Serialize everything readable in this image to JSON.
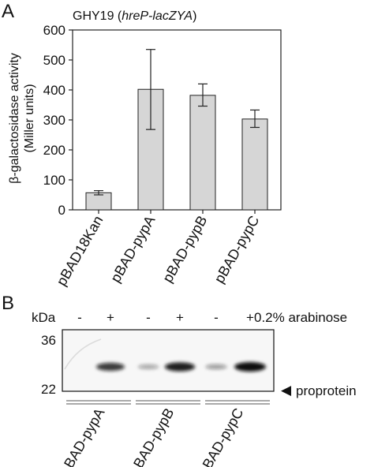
{
  "panel_a_label": "A",
  "panel_b_label": "B",
  "chart_data": {
    "type": "bar",
    "title_prefix": "GHY19 (",
    "title_italic": "hreP-lacZYA",
    "title_suffix": ")",
    "ylabel_line1": "β-galactosidase activity",
    "ylabel_line2": "(Miller units)",
    "ylim": [
      0,
      600
    ],
    "yticks": [
      "0",
      "100",
      "200",
      "300",
      "400",
      "500",
      "600"
    ],
    "ytick_values": [
      0,
      100,
      200,
      300,
      400,
      500,
      600
    ],
    "grid": false,
    "categories": [
      "pBAD18Kan",
      "pBAD-pypA",
      "pBAD-pypB",
      "pBAD-pypC"
    ],
    "values": [
      57,
      402,
      382,
      303
    ],
    "error_upper": [
      64,
      535,
      420,
      333
    ],
    "error_lower": [
      50,
      268,
      346,
      275
    ]
  },
  "blot": {
    "kda_label": "kDa",
    "lane_signs": [
      "-",
      "+",
      "-",
      "+",
      "-",
      "+"
    ],
    "condition_label": "0.2% arabinose",
    "marker_36": "36",
    "marker_22": "22",
    "band_label": "proprotein",
    "arrow_glyph": "◀",
    "band_intensity": [
      0.0,
      0.75,
      0.15,
      0.9,
      0.2,
      1.0
    ],
    "groups": [
      "pBAD-pypA",
      "pBAD-pypB",
      "pBAD-pypC"
    ]
  }
}
